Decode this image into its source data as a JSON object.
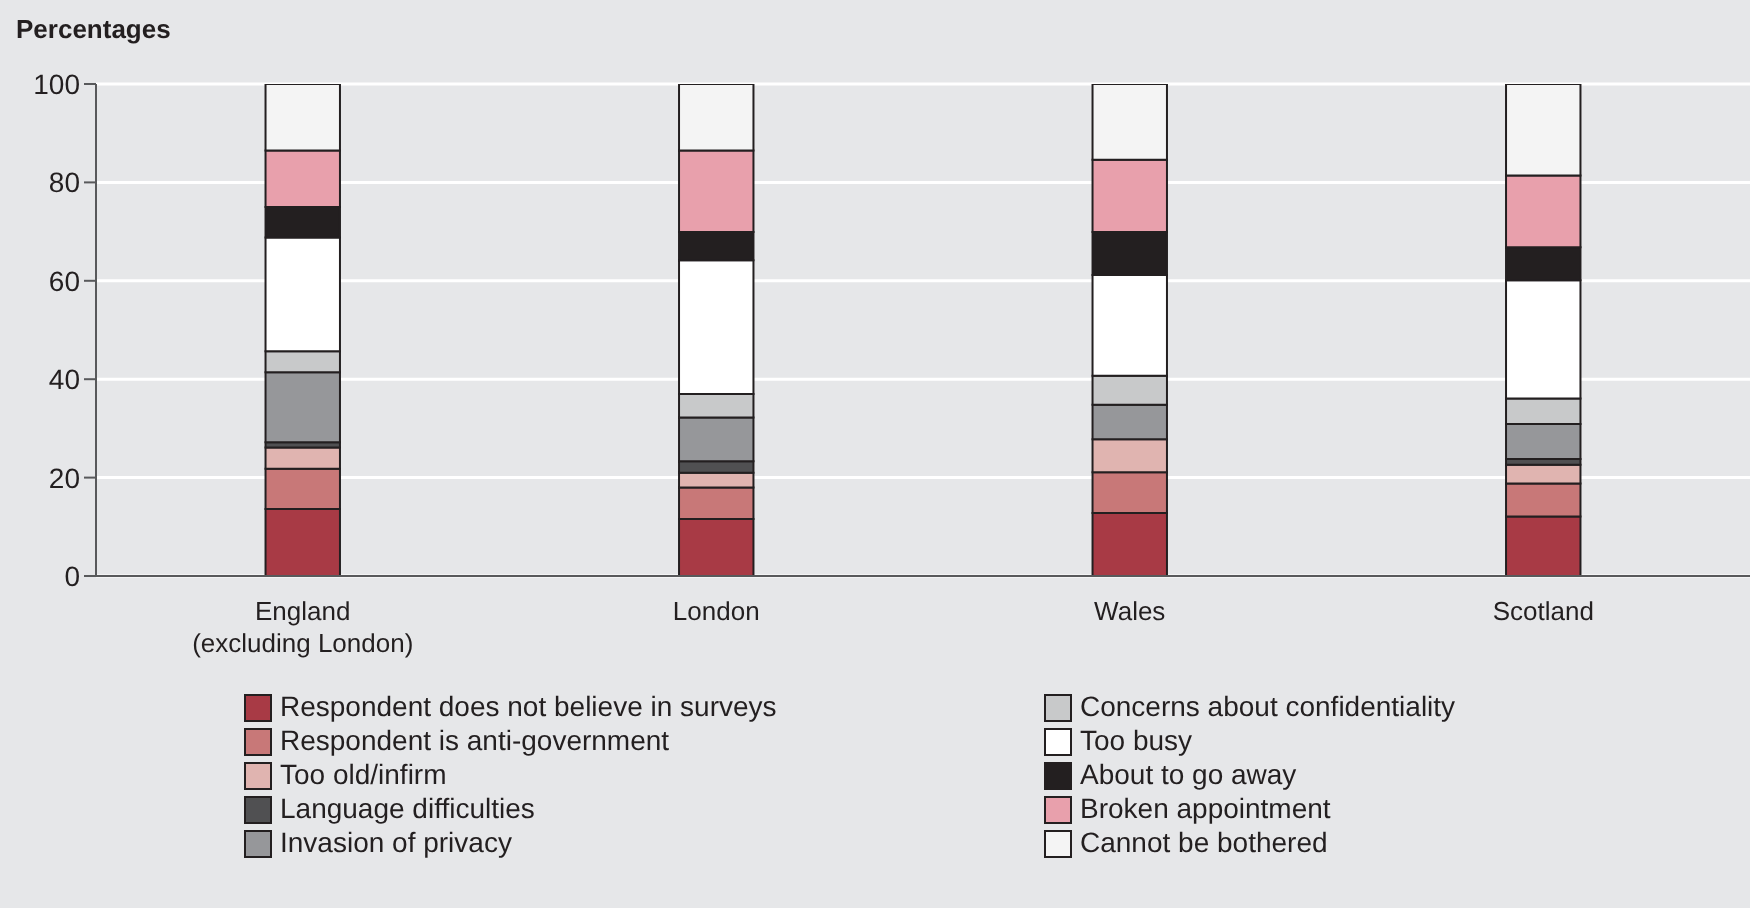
{
  "chart_data": {
    "type": "bar",
    "stacked": true,
    "ylabel": "Percentages",
    "categories": [
      "England\n(excluding London)",
      "London",
      "Wales",
      "Scotland"
    ],
    "ylim": [
      0,
      100
    ],
    "yticks": [
      0,
      20,
      40,
      60,
      80,
      100
    ],
    "grid": "y",
    "legend": "bottom",
    "series": [
      {
        "name": "Respondent does not believe in surveys",
        "color": "#a83a45",
        "values": [
          13.6,
          11.6,
          12.8,
          12.1
        ]
      },
      {
        "name": "Respondent is anti-government",
        "color": "#c87878",
        "values": [
          8.2,
          6.4,
          8.3,
          6.7
        ]
      },
      {
        "name": "Too old/infirm",
        "color": "#e0b4b0",
        "values": [
          4.3,
          3.0,
          6.7,
          3.8
        ]
      },
      {
        "name": "Language difficulties",
        "color": "#505052",
        "values": [
          1.1,
          2.3,
          0,
          1.2
        ]
      },
      {
        "name": "Invasion of privacy",
        "color": "#96979a",
        "values": [
          14.2,
          8.9,
          7.0,
          7.1
        ]
      },
      {
        "name": "Concerns about confidentiality",
        "color": "#c8c9ca",
        "values": [
          4.3,
          4.8,
          5.9,
          5.2
        ]
      },
      {
        "name": "Too busy",
        "color": "#ffffff",
        "values": [
          23.1,
          27.2,
          20.5,
          24.0
        ]
      },
      {
        "name": "About to go away",
        "color": "#231f20",
        "values": [
          6.2,
          5.7,
          8.7,
          6.7
        ]
      },
      {
        "name": "Broken appointment",
        "color": "#e8a0ac",
        "values": [
          11.5,
          16.6,
          14.7,
          14.6
        ]
      },
      {
        "name": "Cannot be bothered",
        "color": "#f4f4f4",
        "values": [
          13.5,
          13.5,
          15.4,
          18.6
        ]
      }
    ]
  }
}
